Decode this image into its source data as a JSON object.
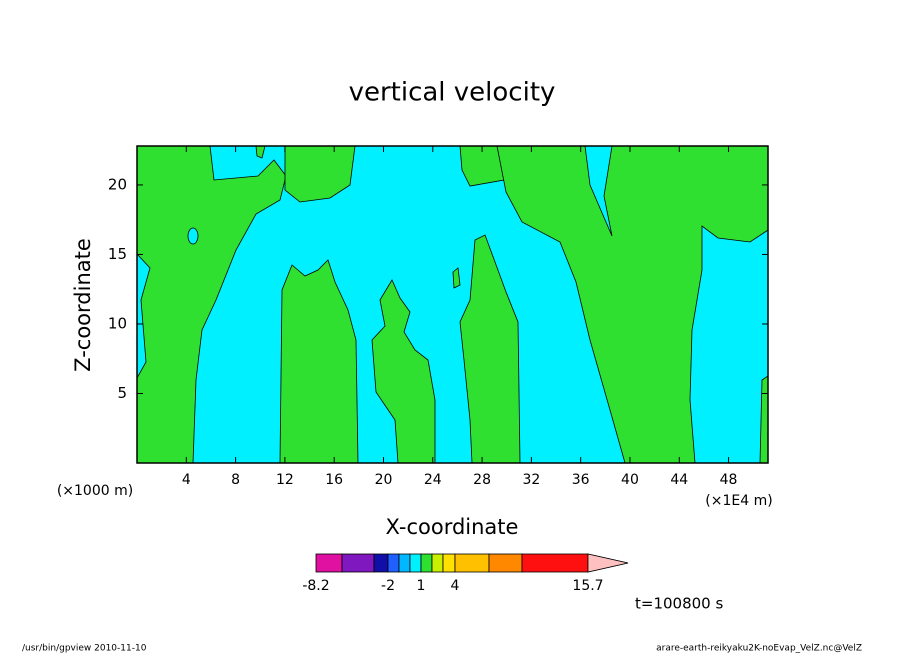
{
  "chart_data": {
    "type": "contour",
    "title": "vertical velocity",
    "x_label": "X-coordinate",
    "y_label": "Z-coordinate",
    "x_unit_left": "(×1000 m)",
    "x_unit_right": "(×1E4 m)",
    "xlim": [
      0,
      51.2
    ],
    "xticks": [
      4,
      8,
      12,
      16,
      20,
      24,
      28,
      32,
      36,
      40,
      44,
      48
    ],
    "ylim": [
      0,
      22.8
    ],
    "yticks": [
      5,
      10,
      15,
      20
    ],
    "colorbar": {
      "colors": [
        "#e010a0",
        "#8018c0",
        "#1010a8",
        "#2060ff",
        "#00b8ff",
        "#00f0ff",
        "#30e030",
        "#c8f000",
        "#ffe000",
        "#ffc000",
        "#ff8800",
        "#ff1010",
        "#ff8080",
        "#ffc0c0"
      ],
      "tick_labels": [
        -8.2,
        -2,
        1,
        4,
        15.7
      ]
    },
    "annotation": "t=100800 s",
    "footer_left": "/usr/bin/gpview  2010-11-10",
    "footer_right": "arare-earth-reikyaku2K-noEvap_VelZ.nc@VelZ"
  }
}
